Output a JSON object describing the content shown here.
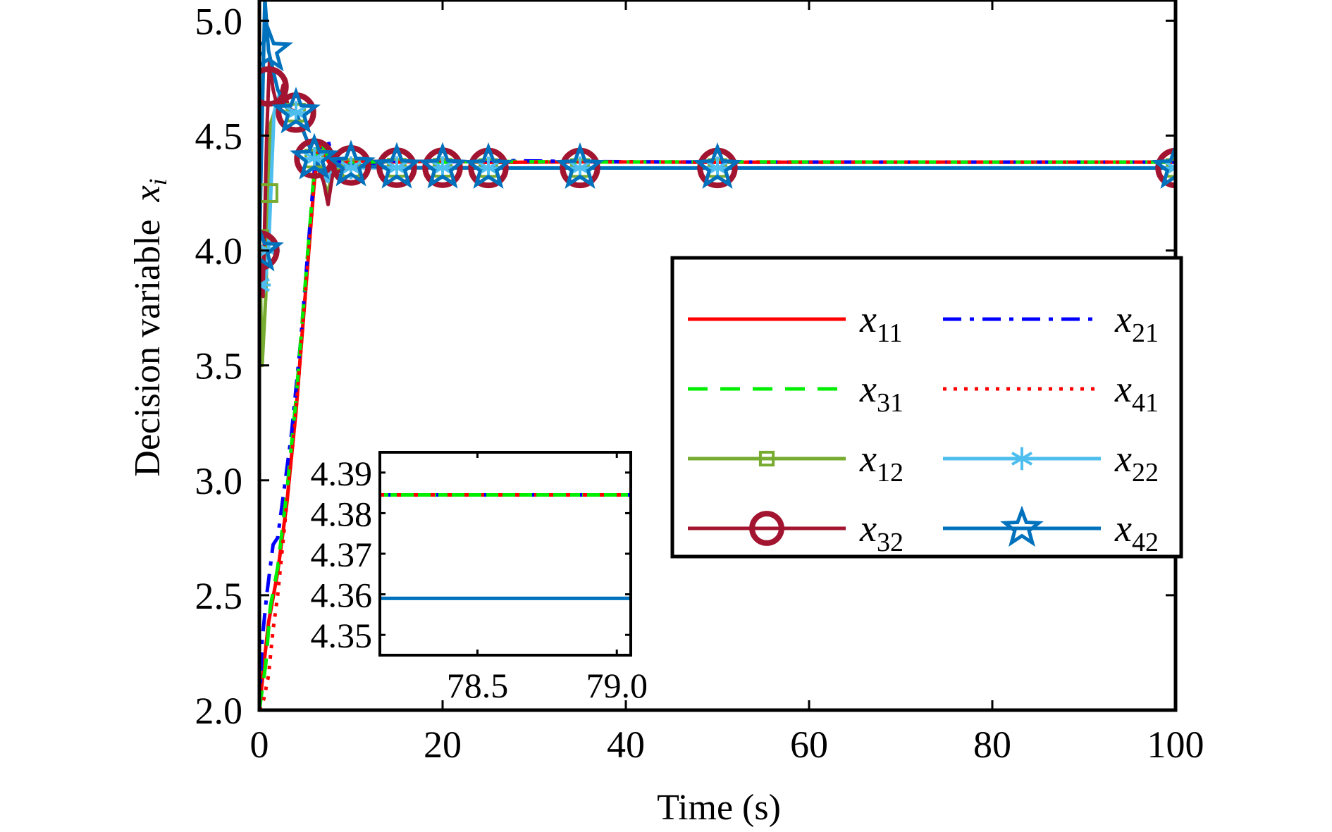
{
  "chart_data": {
    "type": "line",
    "title": "",
    "xlabel": "Time (s)",
    "ylabel": "Decision variable",
    "ylabel_symbol": "x",
    "ylabel_subscript": "i",
    "xlim": [
      0,
      100
    ],
    "ylim": [
      2.0,
      5.09
    ],
    "grid": false,
    "x_ticks": [
      0,
      20,
      40,
      60,
      80,
      100
    ],
    "x_tick_labels": [
      "0",
      "20",
      "40",
      "60",
      "80",
      "100"
    ],
    "y_ticks": [
      2.0,
      2.5,
      3.0,
      3.5,
      4.0,
      4.5,
      5.0
    ],
    "y_tick_labels": [
      "2.0",
      "2.5",
      "3.0",
      "3.5",
      "4.0",
      "4.5",
      "5.0"
    ],
    "legend_position": "center-right",
    "series": [
      {
        "name": "x11",
        "base": "x",
        "sub": "11",
        "color": "#ff0000",
        "dash": "solid",
        "marker": "none",
        "points": [
          [
            0,
            2.0
          ],
          [
            0.5,
            2.2
          ],
          [
            1,
            2.38
          ],
          [
            2,
            2.6
          ],
          [
            3,
            2.9
          ],
          [
            4,
            3.3
          ],
          [
            5,
            3.8
          ],
          [
            6,
            4.3
          ],
          [
            6.5,
            4.47
          ],
          [
            7,
            4.42
          ],
          [
            8,
            4.36
          ],
          [
            10,
            4.39
          ],
          [
            15,
            4.385
          ],
          [
            20,
            4.39
          ],
          [
            25,
            4.383
          ],
          [
            35,
            4.386
          ],
          [
            50,
            4.384
          ],
          [
            78,
            4.3845
          ],
          [
            100,
            4.3845
          ]
        ]
      },
      {
        "name": "x21",
        "base": "x",
        "sub": "21",
        "color": "#0000ff",
        "dash": "dashdot",
        "marker": "none",
        "points": [
          [
            0,
            2.0
          ],
          [
            0.3,
            2.3
          ],
          [
            0.8,
            2.5
          ],
          [
            1.5,
            2.72
          ],
          [
            2,
            2.75
          ],
          [
            2.5,
            2.9
          ],
          [
            3.5,
            3.2
          ],
          [
            4.5,
            3.6
          ],
          [
            5.5,
            4.1
          ],
          [
            6,
            4.35
          ],
          [
            6.5,
            4.42
          ],
          [
            7.5,
            4.48
          ],
          [
            8,
            4.4
          ],
          [
            10,
            4.37
          ],
          [
            15,
            4.39
          ],
          [
            20,
            4.385
          ],
          [
            25,
            4.392
          ],
          [
            35,
            4.387
          ],
          [
            50,
            4.385
          ],
          [
            78,
            4.3845
          ],
          [
            100,
            4.3845
          ]
        ]
      },
      {
        "name": "x31",
        "base": "x",
        "sub": "31",
        "color": "#00ee00",
        "dash": "dashed",
        "marker": "none",
        "points": [
          [
            0,
            2.0
          ],
          [
            0.7,
            2.2
          ],
          [
            1.2,
            2.45
          ],
          [
            2,
            2.62
          ],
          [
            3,
            2.95
          ],
          [
            4,
            3.35
          ],
          [
            5,
            3.85
          ],
          [
            6,
            4.35
          ],
          [
            6.5,
            4.5
          ],
          [
            7,
            4.45
          ],
          [
            8,
            4.36
          ],
          [
            10,
            4.38
          ],
          [
            15,
            4.39
          ],
          [
            20,
            4.384
          ],
          [
            25,
            4.388
          ],
          [
            35,
            4.385
          ],
          [
            50,
            4.386
          ],
          [
            78,
            4.3845
          ],
          [
            100,
            4.3845
          ]
        ]
      },
      {
        "name": "x41",
        "base": "x",
        "sub": "41",
        "color": "#ff0000",
        "dash": "dotted",
        "marker": "none",
        "points": [
          [
            0,
            2.0
          ],
          [
            0.5,
            2.05
          ],
          [
            1,
            2.15
          ],
          [
            1.5,
            2.35
          ],
          [
            2,
            2.5
          ],
          [
            3,
            2.9
          ],
          [
            4,
            3.3
          ],
          [
            5,
            3.8
          ],
          [
            6,
            4.3
          ],
          [
            6.5,
            4.47
          ],
          [
            7,
            4.42
          ],
          [
            8,
            4.36
          ],
          [
            10,
            4.39
          ],
          [
            15,
            4.385
          ],
          [
            20,
            4.39
          ],
          [
            25,
            4.383
          ],
          [
            35,
            4.386
          ],
          [
            50,
            4.384
          ],
          [
            78,
            4.3845
          ],
          [
            100,
            4.3845
          ]
        ]
      },
      {
        "name": "x12",
        "base": "x",
        "sub": "12",
        "color": "#77ac30",
        "dash": "solid",
        "marker": "square",
        "marker_t": [
          0,
          1,
          4,
          6,
          10,
          15,
          20,
          25,
          35,
          50,
          100
        ],
        "points": [
          [
            0,
            4.05
          ],
          [
            0.3,
            3.5
          ],
          [
            0.7,
            3.8
          ],
          [
            1.2,
            4.55
          ],
          [
            1.8,
            4.62
          ],
          [
            3,
            4.6
          ],
          [
            4,
            4.6
          ],
          [
            5,
            4.5
          ],
          [
            6,
            4.4
          ],
          [
            7,
            4.3
          ],
          [
            7.5,
            4.25
          ],
          [
            8,
            4.35
          ],
          [
            10,
            4.36
          ],
          [
            15,
            4.36
          ],
          [
            20,
            4.36
          ],
          [
            25,
            4.359
          ],
          [
            35,
            4.359
          ],
          [
            50,
            4.359
          ],
          [
            78,
            4.359
          ],
          [
            100,
            4.359
          ]
        ]
      },
      {
        "name": "x22",
        "base": "x",
        "sub": "22",
        "color": "#4dbeee",
        "dash": "solid",
        "marker": "asterisk",
        "marker_t": [
          0,
          1,
          4,
          6,
          10,
          15,
          20,
          25,
          35,
          50,
          100
        ],
        "points": [
          [
            0,
            3.85
          ],
          [
            0.5,
            3.82
          ],
          [
            1,
            4.0
          ],
          [
            1.6,
            4.6
          ],
          [
            2.2,
            4.68
          ],
          [
            3,
            4.62
          ],
          [
            4,
            4.6
          ],
          [
            5,
            4.5
          ],
          [
            6,
            4.4
          ],
          [
            7,
            4.32
          ],
          [
            7.5,
            4.3
          ],
          [
            8,
            4.37
          ],
          [
            10,
            4.36
          ],
          [
            15,
            4.36
          ],
          [
            20,
            4.36
          ],
          [
            25,
            4.359
          ],
          [
            35,
            4.359
          ],
          [
            50,
            4.359
          ],
          [
            78,
            4.359
          ],
          [
            100,
            4.359
          ]
        ]
      },
      {
        "name": "x32",
        "base": "x",
        "sub": "32",
        "color": "#a2142f",
        "dash": "solid",
        "marker": "circle",
        "marker_t": [
          0,
          1,
          4,
          6,
          10,
          15,
          20,
          25,
          35,
          50,
          100
        ],
        "points": [
          [
            0,
            4.0
          ],
          [
            0.4,
            3.8
          ],
          [
            0.8,
            4.5
          ],
          [
            1.1,
            4.82
          ],
          [
            1.5,
            4.7
          ],
          [
            2,
            4.62
          ],
          [
            2.6,
            4.72
          ],
          [
            3.2,
            4.62
          ],
          [
            4,
            4.6
          ],
          [
            5,
            4.5
          ],
          [
            6,
            4.4
          ],
          [
            7,
            4.3
          ],
          [
            7.5,
            4.2
          ],
          [
            8,
            4.33
          ],
          [
            10,
            4.37
          ],
          [
            15,
            4.36
          ],
          [
            20,
            4.36
          ],
          [
            25,
            4.359
          ],
          [
            35,
            4.359
          ],
          [
            50,
            4.359
          ],
          [
            78,
            4.359
          ],
          [
            100,
            4.359
          ]
        ]
      },
      {
        "name": "x42",
        "base": "x",
        "sub": "42",
        "color": "#0072bd",
        "dash": "solid",
        "marker": "pentagram",
        "marker_t": [
          0,
          1,
          4,
          6,
          10,
          15,
          20,
          25,
          35,
          50,
          100
        ],
        "points": [
          [
            0,
            4.0
          ],
          [
            0.6,
            5.1
          ],
          [
            1,
            4.87
          ],
          [
            2,
            4.7
          ],
          [
            3,
            4.62
          ],
          [
            4,
            4.6
          ],
          [
            5,
            4.5
          ],
          [
            6,
            4.4
          ],
          [
            7,
            4.34
          ],
          [
            8,
            4.37
          ],
          [
            10,
            4.37
          ],
          [
            15,
            4.36
          ],
          [
            20,
            4.36
          ],
          [
            25,
            4.359
          ],
          [
            35,
            4.359
          ],
          [
            50,
            4.359
          ],
          [
            78,
            4.359
          ],
          [
            100,
            4.359
          ]
        ]
      }
    ],
    "inset": {
      "xlim": [
        78.15,
        79.05
      ],
      "ylim": [
        4.345,
        4.395
      ],
      "x_ticks": [
        78.5,
        79.0
      ],
      "x_tick_labels": [
        "78.5",
        "79.0"
      ],
      "y_ticks": [
        4.35,
        4.36,
        4.37,
        4.38,
        4.39
      ],
      "y_tick_labels": [
        "4.35",
        "4.36",
        "4.37",
        "4.38",
        "4.39"
      ],
      "lines": [
        {
          "name": "x11-x41 group",
          "value": 4.3845,
          "colors": [
            "#00ee00",
            "#ff0000",
            "#0000ff"
          ]
        },
        {
          "name": "x12-x42 group",
          "value": 4.359,
          "colors": [
            "#0072bd"
          ]
        }
      ]
    }
  }
}
